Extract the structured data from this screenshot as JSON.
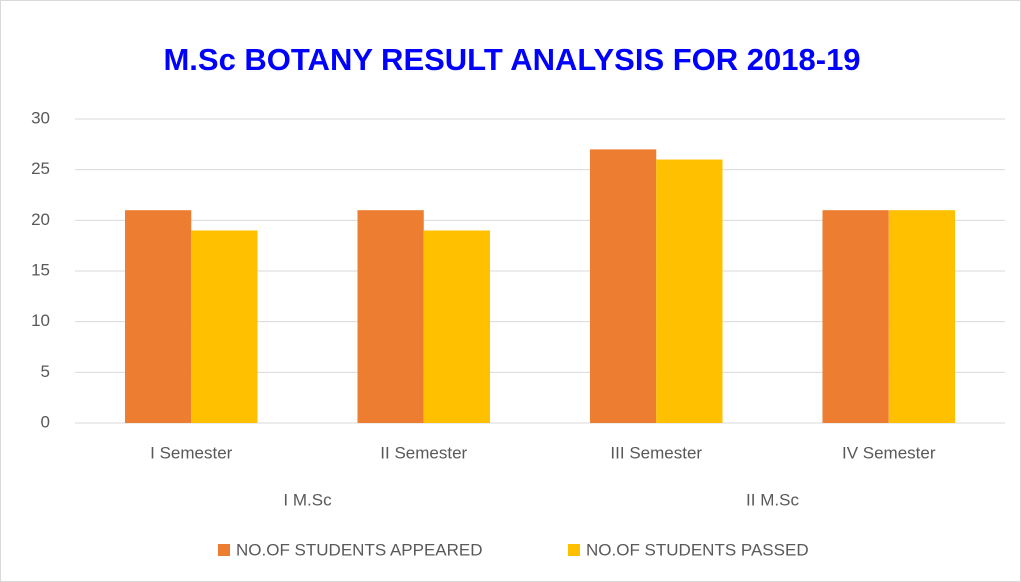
{
  "chart_data": {
    "type": "bar",
    "title": "M.Sc BOTANY RESULT ANALYSIS FOR 2018-19",
    "categories": [
      "I Semester",
      "II Semester",
      "III Semester",
      "IV Semester"
    ],
    "category_groups": [
      "I M.Sc",
      "II M.Sc"
    ],
    "series": [
      {
        "name": "NO.OF STUDENTS APPEARED",
        "color": "#ed7d31",
        "values": [
          21,
          21,
          27,
          21
        ]
      },
      {
        "name": "NO.OF STUDENTS PASSED",
        "color": "#ffc000",
        "values": [
          19,
          19,
          26,
          21
        ]
      }
    ],
    "ylim": [
      0,
      30
    ],
    "yticks": [
      0,
      5,
      10,
      15,
      20,
      25,
      30
    ],
    "grid": true,
    "legend": "bottom"
  }
}
